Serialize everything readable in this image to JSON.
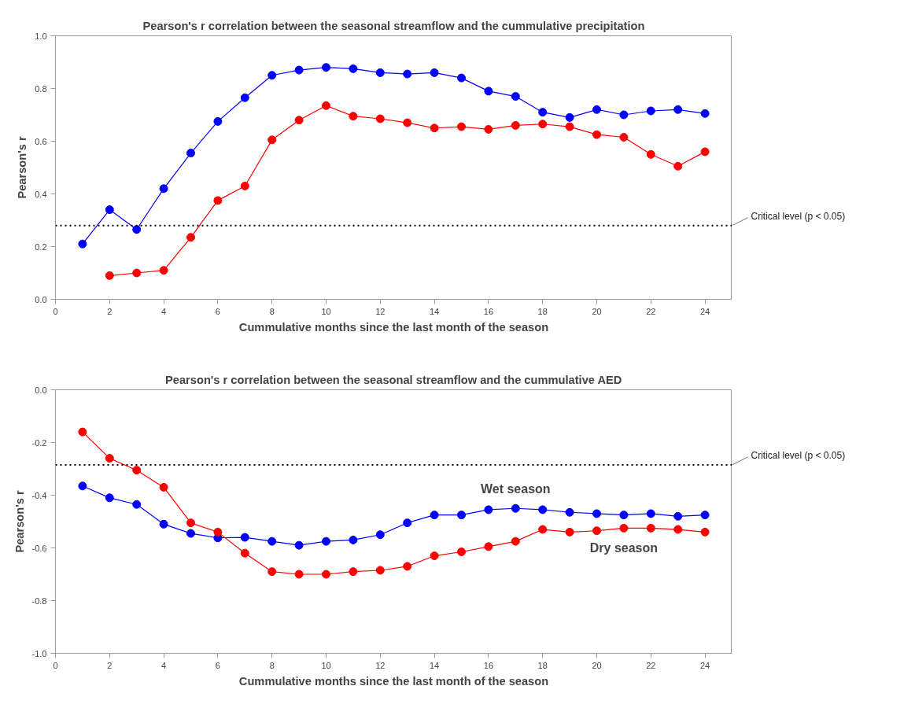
{
  "chart_data": [
    {
      "type": "line",
      "title": "Pearson's r correlation between the seasonal streamflow and the cummulative precipitation",
      "xlabel": "Cummulative months since the last month of the season",
      "ylabel": "Pearson's r",
      "x": [
        1,
        2,
        3,
        4,
        5,
        6,
        7,
        8,
        9,
        10,
        11,
        12,
        13,
        14,
        15,
        16,
        17,
        18,
        19,
        20,
        21,
        22,
        23,
        24
      ],
      "series": [
        {
          "color": "#0000ff",
          "values": [
            0.21,
            0.34,
            0.265,
            0.42,
            0.555,
            0.675,
            0.765,
            0.85,
            0.87,
            0.88,
            0.875,
            0.86,
            0.855,
            0.86,
            0.84,
            0.79,
            0.77,
            0.71,
            0.69,
            0.72,
            0.7,
            0.715,
            0.72,
            0.705
          ]
        },
        {
          "color": "#ff0000",
          "values": [
            null,
            0.09,
            0.1,
            0.11,
            0.235,
            0.375,
            0.43,
            0.605,
            0.68,
            0.735,
            0.695,
            0.685,
            0.67,
            0.65,
            0.655,
            0.645,
            0.66,
            0.665,
            0.655,
            0.625,
            0.615,
            0.55,
            0.505,
            0.56
          ]
        }
      ],
      "xlim": [
        0,
        25
      ],
      "xticks": [
        0,
        2,
        4,
        6,
        8,
        10,
        12,
        14,
        16,
        18,
        20,
        22,
        24
      ],
      "ylim": [
        0,
        1.0
      ],
      "yticks": [
        {
          "value": 0,
          "label": "0.0"
        },
        {
          "value": 0.2,
          "label": "0.2"
        },
        {
          "value": 0.4,
          "label": "0.4"
        },
        {
          "value": 0.6,
          "label": "0.6"
        },
        {
          "value": 0.8,
          "label": "0.8"
        },
        {
          "value": 1.0,
          "label": "1.0"
        }
      ],
      "ref_lines": [
        {
          "axis": "y",
          "value": 0.28,
          "label": "Critical level (p < 0.05)",
          "line_style": "dotted",
          "color": "#000000"
        }
      ],
      "marker": "circle",
      "line_style": "solid",
      "grid": false,
      "legend": false
    },
    {
      "type": "line",
      "title": "Pearson's r correlation between the seasonal streamflow and the cummulative AED",
      "xlabel": "Cummulative months since the last month of the season",
      "ylabel": "Pearson's r",
      "x": [
        1,
        2,
        3,
        4,
        5,
        6,
        7,
        8,
        9,
        10,
        11,
        12,
        13,
        14,
        15,
        16,
        17,
        18,
        19,
        20,
        21,
        22,
        23,
        24
      ],
      "series": [
        {
          "name": "Wet season",
          "color": "#0000ff",
          "values": [
            -0.365,
            -0.41,
            -0.435,
            -0.51,
            -0.545,
            -0.562,
            -0.56,
            -0.575,
            -0.59,
            -0.575,
            -0.57,
            -0.55,
            -0.505,
            -0.475,
            -0.475,
            -0.455,
            -0.45,
            -0.455,
            -0.465,
            -0.47,
            -0.475,
            -0.47,
            -0.48,
            -0.475
          ]
        },
        {
          "name": "Dry season",
          "color": "#ff0000",
          "values": [
            -0.16,
            -0.26,
            -0.305,
            -0.37,
            -0.505,
            -0.54,
            -0.62,
            -0.69,
            -0.7,
            -0.7,
            -0.69,
            -0.685,
            -0.67,
            -0.63,
            -0.615,
            -0.595,
            -0.575,
            -0.53,
            -0.54,
            -0.535,
            -0.525,
            -0.525,
            -0.53,
            -0.54
          ]
        }
      ],
      "xlim": [
        0,
        25
      ],
      "xticks": [
        0,
        2,
        4,
        6,
        8,
        10,
        12,
        14,
        16,
        18,
        20,
        22,
        24
      ],
      "ylim": [
        -1.0,
        0
      ],
      "yticks": [
        {
          "value": -1.0,
          "label": "-1.0"
        },
        {
          "value": -0.8,
          "label": "-0.8"
        },
        {
          "value": -0.6,
          "label": "-0.6"
        },
        {
          "value": -0.4,
          "label": "-0.4"
        },
        {
          "value": -0.2,
          "label": "-0.2"
        },
        {
          "value": 0,
          "label": "0.0"
        }
      ],
      "ref_lines": [
        {
          "axis": "y",
          "value": -0.285,
          "label": "Critical level (p < 0.05)",
          "line_style": "dotted",
          "color": "#000000"
        }
      ],
      "marker": "circle",
      "line_style": "solid",
      "grid": false,
      "legend": false
    }
  ]
}
